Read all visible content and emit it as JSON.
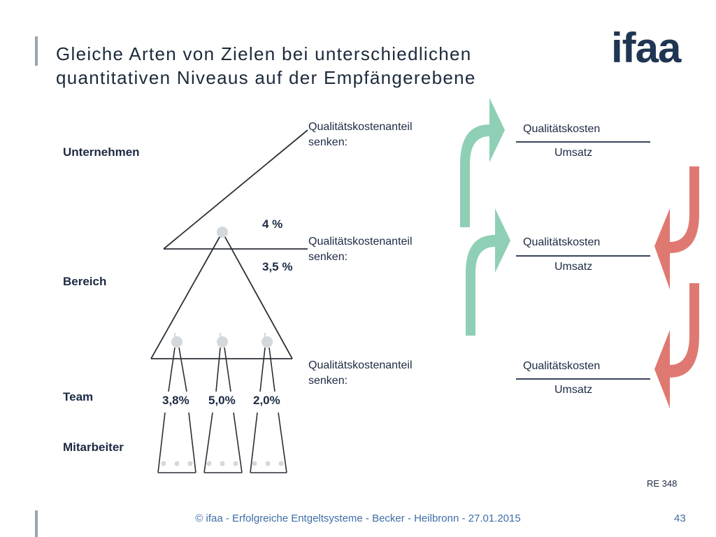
{
  "title": {
    "line1": "Gleiche Arten von Zielen bei unterschiedlichen",
    "line2": "quantitativen Niveaus auf der Empfängerebene"
  },
  "logo": {
    "text": "ifaa",
    "color": "#1f3553"
  },
  "levels": {
    "unternehmen": "Unternehmen",
    "bereich": "Bereich",
    "team": "Team",
    "mitarbeiter": "Mitarbeiter"
  },
  "percentages": {
    "top": "4 %",
    "bereich": "3,5 %",
    "team1": "3,8%",
    "team2": "5,0%",
    "team3": "2,0%"
  },
  "goals": [
    {
      "line1": "Qualitätskostenanteil",
      "line2": "senken:"
    },
    {
      "line1": "Qualitätskostenanteil",
      "line2": "senken:"
    },
    {
      "line1": "Qualitätskostenanteil",
      "line2": "senken:"
    }
  ],
  "fractions": [
    {
      "numerator": "Qualitätskosten",
      "denominator": "Umsatz"
    },
    {
      "numerator": "Qualitätskosten",
      "denominator": "Umsatz"
    },
    {
      "numerator": "Qualitätskosten",
      "denominator": "Umsatz"
    }
  ],
  "colors": {
    "green_arrow": "#8fcfb5",
    "red_arrow": "#e07872",
    "accent_bar": "#9aa4ad",
    "footer_text": "#3f6ea8"
  },
  "ref": "RE 348",
  "footer": {
    "text": "© ifaa - Erfolgreiche Entgeltsysteme - Becker - Heilbronn - 27.01.2015",
    "page": "43"
  }
}
